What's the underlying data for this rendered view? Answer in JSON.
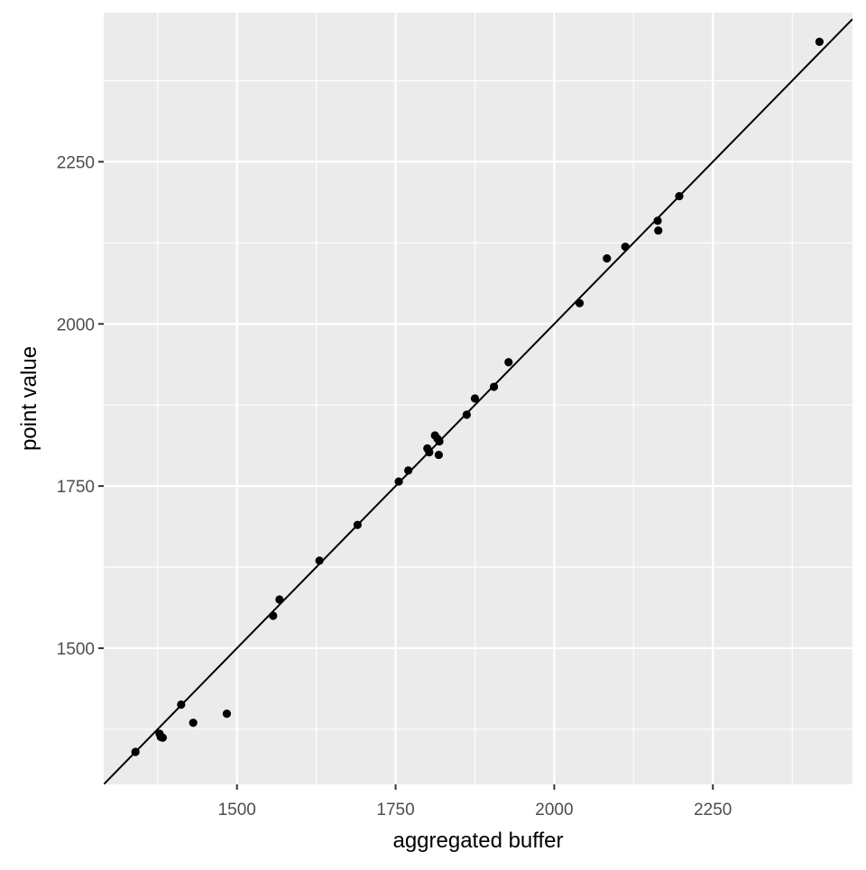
{
  "chart_data": {
    "type": "scatter",
    "title": "",
    "xlabel": "aggregated buffer",
    "ylabel": "point value",
    "xlim": [
      1290,
      2470
    ],
    "ylim": [
      1290,
      2480
    ],
    "x_ticks": [
      1500,
      1750,
      2000,
      2250
    ],
    "x_minor": [
      1375,
      1625,
      1875,
      2125,
      2375
    ],
    "y_ticks": [
      1500,
      1750,
      2000,
      2250
    ],
    "y_minor": [
      1375,
      1625,
      1875,
      2125,
      2375
    ],
    "x_tick_labels": [
      "1500",
      "1750",
      "2000",
      "2250"
    ],
    "y_tick_labels": [
      "1500",
      "1750",
      "2000",
      "2250"
    ],
    "grid": true,
    "legend": "none",
    "colors": {
      "panel": "#ebebeb",
      "grid": "#ffffff",
      "points": "#000000",
      "line": "#000000"
    },
    "reference_line": {
      "intercept": 0,
      "slope": 1
    },
    "points": [
      {
        "x": 1340,
        "y": 1340
      },
      {
        "x": 1378,
        "y": 1368
      },
      {
        "x": 1380,
        "y": 1363
      },
      {
        "x": 1383,
        "y": 1362
      },
      {
        "x": 1412,
        "y": 1413
      },
      {
        "x": 1431,
        "y": 1385
      },
      {
        "x": 1484,
        "y": 1399
      },
      {
        "x": 1557,
        "y": 1550
      },
      {
        "x": 1567,
        "y": 1575
      },
      {
        "x": 1630,
        "y": 1635
      },
      {
        "x": 1690,
        "y": 1690
      },
      {
        "x": 1755,
        "y": 1757
      },
      {
        "x": 1770,
        "y": 1774
      },
      {
        "x": 1800,
        "y": 1808
      },
      {
        "x": 1803,
        "y": 1802
      },
      {
        "x": 1812,
        "y": 1828
      },
      {
        "x": 1816,
        "y": 1823
      },
      {
        "x": 1818,
        "y": 1798
      },
      {
        "x": 1819,
        "y": 1819
      },
      {
        "x": 1862,
        "y": 1860
      },
      {
        "x": 1875,
        "y": 1885
      },
      {
        "x": 1905,
        "y": 1903
      },
      {
        "x": 1928,
        "y": 1941
      },
      {
        "x": 2040,
        "y": 2032
      },
      {
        "x": 2083,
        "y": 2101
      },
      {
        "x": 2112,
        "y": 2119
      },
      {
        "x": 2163,
        "y": 2159
      },
      {
        "x": 2164,
        "y": 2144
      },
      {
        "x": 2197,
        "y": 2197
      },
      {
        "x": 2418,
        "y": 2435
      }
    ]
  }
}
